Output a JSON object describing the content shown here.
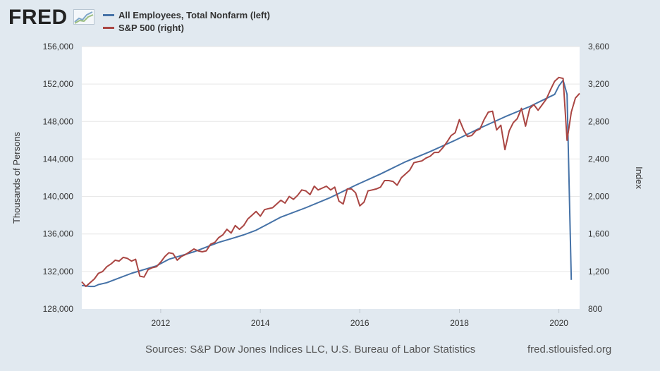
{
  "header": {
    "logo_text": "FRED"
  },
  "colors": {
    "background": "#e1e9f0",
    "plot_background": "#ffffff",
    "grid": "#e6e6e6",
    "employees": "#4572a7",
    "sp500": "#aa4643"
  },
  "footer": {
    "sources": "Sources: S&P Dow Jones Indices LLC, U.S. Bureau of Labor Statistics",
    "site": "fred.stlouisfed.org"
  },
  "chart_data": {
    "type": "line",
    "grid": true,
    "legend_position": "top-left",
    "x_range": [
      "2010-06-01",
      "2020-06-01"
    ],
    "x_ticks": [
      "2012",
      "2014",
      "2016",
      "2018",
      "2020"
    ],
    "y_left": {
      "label": "Thousands of Persons",
      "range": [
        128000,
        156000
      ],
      "ticks": [
        "128,000",
        "132,000",
        "136,000",
        "140,000",
        "144,000",
        "148,000",
        "152,000",
        "156,000"
      ]
    },
    "y_right": {
      "label": "Index",
      "range": [
        800,
        3600
      ],
      "ticks": [
        "800",
        "1,200",
        "1,600",
        "2,000",
        "2,400",
        "2,800",
        "3,200",
        "3,600"
      ]
    },
    "series": [
      {
        "name": "All Employees, Total Nonfarm (left)",
        "axis": "left",
        "x": [
          "2010-06-01",
          "2010-07-01",
          "2010-08-01",
          "2010-09-01",
          "2010-10-01",
          "2010-12-01",
          "2011-03-01",
          "2011-06-01",
          "2011-09-01",
          "2011-12-01",
          "2012-03-01",
          "2012-06-01",
          "2012-09-01",
          "2012-12-01",
          "2013-03-01",
          "2013-06-01",
          "2013-09-01",
          "2013-12-01",
          "2014-06-01",
          "2014-12-01",
          "2015-06-01",
          "2015-12-01",
          "2016-06-01",
          "2016-12-01",
          "2017-06-01",
          "2017-12-01",
          "2018-06-01",
          "2018-12-01",
          "2019-06-01",
          "2019-12-01",
          "2020-01-01",
          "2020-02-01",
          "2020-03-01",
          "2020-04-01"
        ],
        "values": [
          130500,
          130450,
          130400,
          130400,
          130600,
          130800,
          131300,
          131800,
          132200,
          132600,
          133300,
          133700,
          134100,
          134600,
          135100,
          135500,
          135900,
          136400,
          137800,
          138800,
          139900,
          141200,
          142400,
          143700,
          144800,
          146000,
          147300,
          148500,
          149600,
          150900,
          151800,
          152400,
          150900,
          131100
        ]
      },
      {
        "name": "S&P 500 (right)",
        "axis": "right",
        "x": [
          "2010-06-01",
          "2010-07-01",
          "2010-08-01",
          "2010-09-01",
          "2010-10-01",
          "2010-11-01",
          "2010-12-01",
          "2011-01-01",
          "2011-02-01",
          "2011-03-01",
          "2011-04-01",
          "2011-05-01",
          "2011-06-01",
          "2011-07-01",
          "2011-08-01",
          "2011-09-01",
          "2011-10-01",
          "2011-11-01",
          "2011-12-01",
          "2012-01-01",
          "2012-02-01",
          "2012-03-01",
          "2012-04-01",
          "2012-05-01",
          "2012-06-01",
          "2012-07-01",
          "2012-08-01",
          "2012-09-01",
          "2012-10-01",
          "2012-11-01",
          "2012-12-01",
          "2013-01-01",
          "2013-02-01",
          "2013-03-01",
          "2013-04-01",
          "2013-05-01",
          "2013-06-01",
          "2013-07-01",
          "2013-08-01",
          "2013-09-01",
          "2013-10-01",
          "2013-11-01",
          "2013-12-01",
          "2014-01-01",
          "2014-02-01",
          "2014-03-01",
          "2014-04-01",
          "2014-05-01",
          "2014-06-01",
          "2014-07-01",
          "2014-08-01",
          "2014-09-01",
          "2014-10-01",
          "2014-11-01",
          "2014-12-01",
          "2015-01-01",
          "2015-02-01",
          "2015-03-01",
          "2015-04-01",
          "2015-05-01",
          "2015-06-01",
          "2015-07-01",
          "2015-08-01",
          "2015-09-01",
          "2015-10-01",
          "2015-11-01",
          "2015-12-01",
          "2016-01-01",
          "2016-02-01",
          "2016-03-01",
          "2016-04-01",
          "2016-05-01",
          "2016-06-01",
          "2016-07-01",
          "2016-08-01",
          "2016-09-01",
          "2016-10-01",
          "2016-11-01",
          "2016-12-01",
          "2017-01-01",
          "2017-02-01",
          "2017-03-01",
          "2017-04-01",
          "2017-05-01",
          "2017-06-01",
          "2017-07-01",
          "2017-08-01",
          "2017-09-01",
          "2017-10-01",
          "2017-11-01",
          "2017-12-01",
          "2018-01-01",
          "2018-02-01",
          "2018-03-01",
          "2018-04-01",
          "2018-05-01",
          "2018-06-01",
          "2018-07-01",
          "2018-08-01",
          "2018-09-01",
          "2018-10-01",
          "2018-11-01",
          "2018-12-01",
          "2019-01-01",
          "2019-02-01",
          "2019-03-01",
          "2019-04-01",
          "2019-05-01",
          "2019-06-01",
          "2019-07-01",
          "2019-08-01",
          "2019-09-01",
          "2019-10-01",
          "2019-11-01",
          "2019-12-01",
          "2020-01-01",
          "2020-02-01",
          "2020-03-01",
          "2020-04-01",
          "2020-05-01",
          "2020-06-01"
        ],
        "values": [
          1090,
          1040,
          1080,
          1120,
          1180,
          1200,
          1250,
          1280,
          1320,
          1310,
          1350,
          1340,
          1310,
          1330,
          1150,
          1140,
          1220,
          1240,
          1250,
          1300,
          1360,
          1400,
          1390,
          1320,
          1360,
          1380,
          1410,
          1440,
          1420,
          1410,
          1420,
          1490,
          1510,
          1560,
          1590,
          1650,
          1610,
          1690,
          1650,
          1690,
          1760,
          1800,
          1840,
          1790,
          1860,
          1870,
          1880,
          1920,
          1960,
          1930,
          2000,
          1970,
          2010,
          2070,
          2060,
          2020,
          2110,
          2070,
          2090,
          2110,
          2070,
          2100,
          1950,
          1920,
          2080,
          2080,
          2040,
          1900,
          1940,
          2060,
          2070,
          2080,
          2100,
          2170,
          2170,
          2160,
          2120,
          2200,
          2240,
          2280,
          2360,
          2370,
          2380,
          2410,
          2430,
          2470,
          2470,
          2520,
          2580,
          2650,
          2680,
          2820,
          2710,
          2640,
          2650,
          2700,
          2720,
          2820,
          2900,
          2910,
          2710,
          2760,
          2500,
          2700,
          2790,
          2830,
          2940,
          2750,
          2940,
          2980,
          2920,
          2980,
          3040,
          3140,
          3230,
          3270,
          3260,
          2600,
          2900,
          3050,
          3100
        ]
      }
    ]
  }
}
